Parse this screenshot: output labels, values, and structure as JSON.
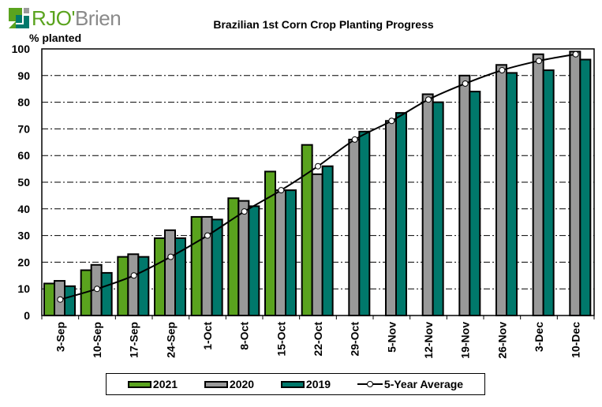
{
  "logo": {
    "text_primary": "RJO",
    "text_apostrophe": "'",
    "text_secondary": "Brien",
    "colors": {
      "green": "#5aa31e",
      "gray": "#9a9a9a",
      "teal": "#00796b"
    }
  },
  "colors": {
    "s2021": "#5aa31e",
    "s2020": "#999999",
    "s2019": "#00786b",
    "avg_line": "#000000",
    "avg_marker": "#ffffff"
  },
  "chart_data": {
    "type": "bar",
    "title": "Brazilian 1st Corn Crop Planting Progress",
    "xlabel": "",
    "ylabel": "% planted",
    "ylim": [
      0,
      100
    ],
    "yticks": [
      0,
      10,
      20,
      30,
      40,
      50,
      60,
      70,
      80,
      90,
      100
    ],
    "grid": true,
    "legend_position": "bottom",
    "categories": [
      "3-Sep",
      "10-Sep",
      "17-Sep",
      "24-Sep",
      "1-Oct",
      "8-Oct",
      "15-Oct",
      "22-Oct",
      "29-Oct",
      "5-Nov",
      "12-Nov",
      "19-Nov",
      "26-Nov",
      "3-Dec",
      "10-Dec"
    ],
    "series": [
      {
        "name": "2021",
        "type": "bar",
        "values": [
          12,
          17,
          22,
          29,
          37,
          44,
          54,
          64,
          null,
          null,
          null,
          null,
          null,
          null,
          null
        ]
      },
      {
        "name": "2020",
        "type": "bar",
        "values": [
          13,
          19,
          23,
          32,
          37,
          43,
          47,
          53,
          66,
          73,
          83,
          90,
          94,
          98,
          99
        ]
      },
      {
        "name": "2019",
        "type": "bar",
        "values": [
          11,
          16,
          22,
          29,
          36,
          41,
          47,
          56,
          69,
          76,
          80,
          84,
          91,
          92,
          96
        ]
      },
      {
        "name": "5-Year Average",
        "type": "line",
        "values": [
          6,
          10,
          15,
          22,
          30,
          39,
          47,
          56,
          66,
          73,
          81,
          87,
          92,
          95.5,
          98
        ]
      }
    ]
  },
  "legend": [
    {
      "label": "2021"
    },
    {
      "label": "2020"
    },
    {
      "label": "2019"
    },
    {
      "label": "5-Year Average"
    }
  ]
}
